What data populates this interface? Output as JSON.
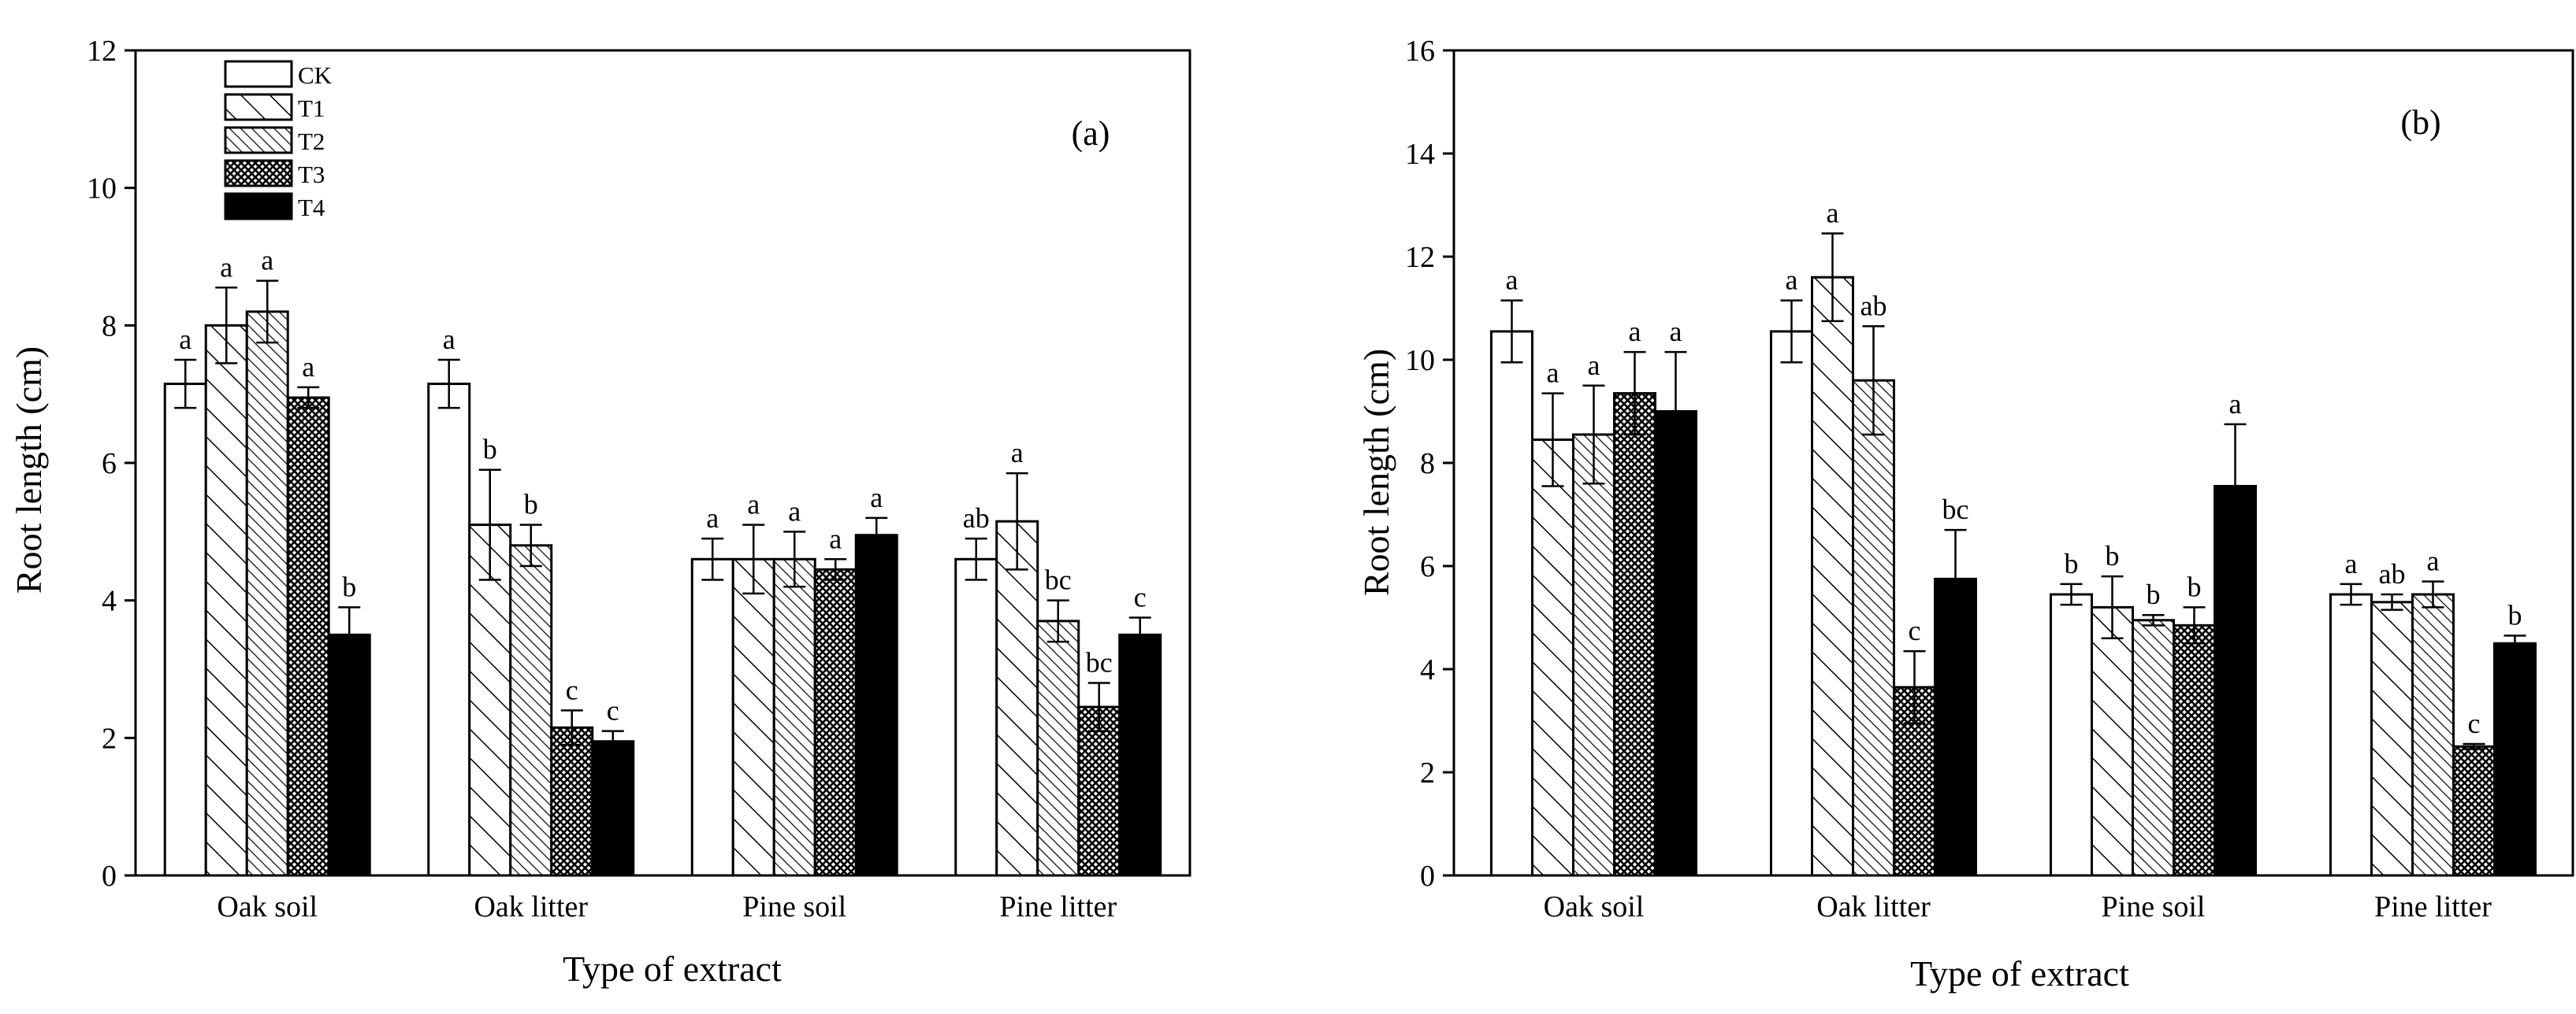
{
  "colors": {
    "ink": "#000000",
    "paper": "#ffffff"
  },
  "chart_data": [
    {
      "type": "bar",
      "panel_label": "(a)",
      "xlabel": "Type of extract",
      "ylabel": "Root length (cm)",
      "ylim": [
        0,
        12
      ],
      "yticks": [
        0,
        2,
        4,
        6,
        8,
        10,
        12
      ],
      "legend_position": "top-left",
      "categories": [
        "Oak soil",
        "Oak litter",
        "Pine soil",
        "Pine litter"
      ],
      "series": [
        {
          "name": "CK",
          "pattern": "empty",
          "values": [
            7.15,
            7.15,
            4.6,
            4.6
          ],
          "errors": [
            0.35,
            0.35,
            0.3,
            0.3
          ],
          "letters": [
            "a",
            "a",
            "a",
            "ab"
          ]
        },
        {
          "name": "T1",
          "pattern": "diagonal-wide",
          "values": [
            8.0,
            5.1,
            4.6,
            5.15
          ],
          "errors": [
            0.55,
            0.8,
            0.5,
            0.7
          ],
          "letters": [
            "a",
            "b",
            "a",
            "a"
          ]
        },
        {
          "name": "T2",
          "pattern": "diagonal-dense",
          "values": [
            8.2,
            4.8,
            4.6,
            3.7
          ],
          "errors": [
            0.45,
            0.3,
            0.4,
            0.3
          ],
          "letters": [
            "a",
            "b",
            "a",
            "bc"
          ]
        },
        {
          "name": "T3",
          "pattern": "crosshatch",
          "values": [
            6.95,
            2.15,
            4.45,
            2.45
          ],
          "errors": [
            0.15,
            0.25,
            0.15,
            0.35
          ],
          "letters": [
            "a",
            "c",
            "a",
            "bc"
          ]
        },
        {
          "name": "T4",
          "pattern": "solid",
          "values": [
            3.5,
            1.95,
            4.95,
            3.5
          ],
          "errors": [
            0.4,
            0.15,
            0.25,
            0.25
          ],
          "letters": [
            "b",
            "c",
            "a",
            "c"
          ]
        }
      ]
    },
    {
      "type": "bar",
      "panel_label": "(b)",
      "xlabel": "Type of extract",
      "ylabel": "Root length (cm)",
      "ylim": [
        0,
        16
      ],
      "yticks": [
        0,
        2,
        4,
        6,
        8,
        10,
        12,
        14,
        16
      ],
      "categories": [
        "Oak soil",
        "Oak litter",
        "Pine soil",
        "Pine litter"
      ],
      "series": [
        {
          "name": "CK",
          "pattern": "empty",
          "values": [
            10.55,
            10.55,
            5.45,
            5.45
          ],
          "errors": [
            0.6,
            0.6,
            0.2,
            0.2
          ],
          "letters": [
            "a",
            "a",
            "b",
            "a"
          ]
        },
        {
          "name": "T1",
          "pattern": "diagonal-wide",
          "values": [
            8.45,
            11.6,
            5.2,
            5.3
          ],
          "errors": [
            0.9,
            0.85,
            0.6,
            0.15
          ],
          "letters": [
            "a",
            "a",
            "b",
            "ab"
          ]
        },
        {
          "name": "T2",
          "pattern": "diagonal-dense",
          "values": [
            8.55,
            9.6,
            4.95,
            5.45
          ],
          "errors": [
            0.95,
            1.05,
            0.1,
            0.25
          ],
          "letters": [
            "a",
            "ab",
            "b",
            "a"
          ]
        },
        {
          "name": "T3",
          "pattern": "crosshatch",
          "values": [
            9.35,
            3.65,
            4.85,
            2.5
          ],
          "errors": [
            0.8,
            0.7,
            0.35,
            0.05
          ],
          "letters": [
            "a",
            "c",
            "b",
            "c"
          ]
        },
        {
          "name": "T4",
          "pattern": "solid",
          "values": [
            9.0,
            5.75,
            7.55,
            4.5
          ],
          "errors": [
            1.15,
            0.95,
            1.2,
            0.15
          ],
          "letters": [
            "a",
            "bc",
            "a",
            "b"
          ]
        }
      ]
    }
  ]
}
